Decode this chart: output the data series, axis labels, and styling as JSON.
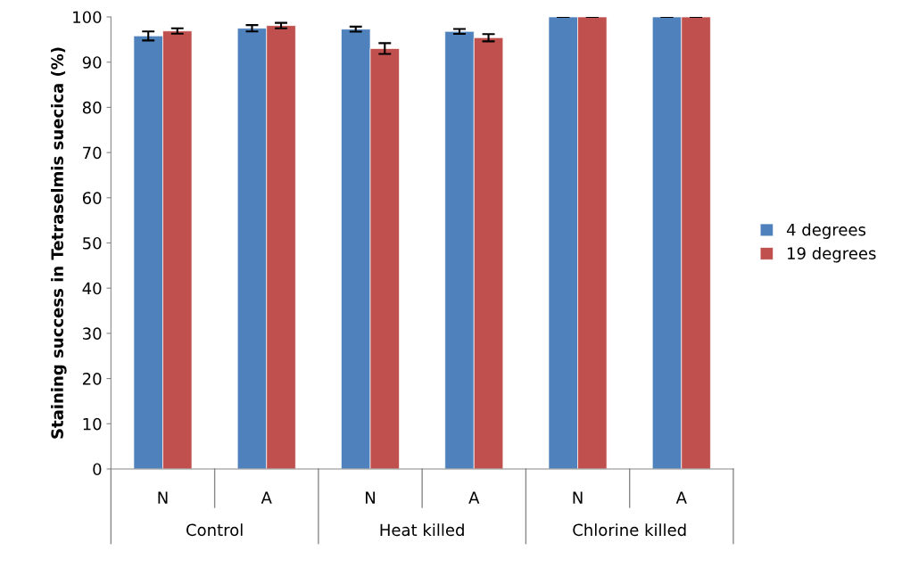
{
  "chart_data": {
    "type": "bar",
    "ylabel": "Staining success in Tetraselmis suecica (%)",
    "categories": [
      "N",
      "A",
      "N",
      "A",
      "N",
      "A"
    ],
    "annotations": [
      "Control",
      "Heat killed",
      "Chlorine killed"
    ],
    "series": [
      {
        "name": "4 degrees",
        "color": "#4f81bd",
        "values": [
          95.8,
          97.5,
          97.3,
          96.8,
          100,
          100
        ],
        "errors": [
          1.0,
          0.7,
          0.55,
          0.55,
          0,
          0
        ]
      },
      {
        "name": "19 degrees",
        "color": "#c0504d",
        "values": [
          96.9,
          98.1,
          93.0,
          95.4,
          100,
          100
        ],
        "errors": [
          0.6,
          0.6,
          1.2,
          0.8,
          0,
          0
        ]
      }
    ],
    "ylim": [
      0,
      100
    ],
    "yticks": [
      0,
      10,
      20,
      30,
      40,
      50,
      60,
      70,
      80,
      90,
      100
    ],
    "grid": false,
    "legend": "right"
  }
}
